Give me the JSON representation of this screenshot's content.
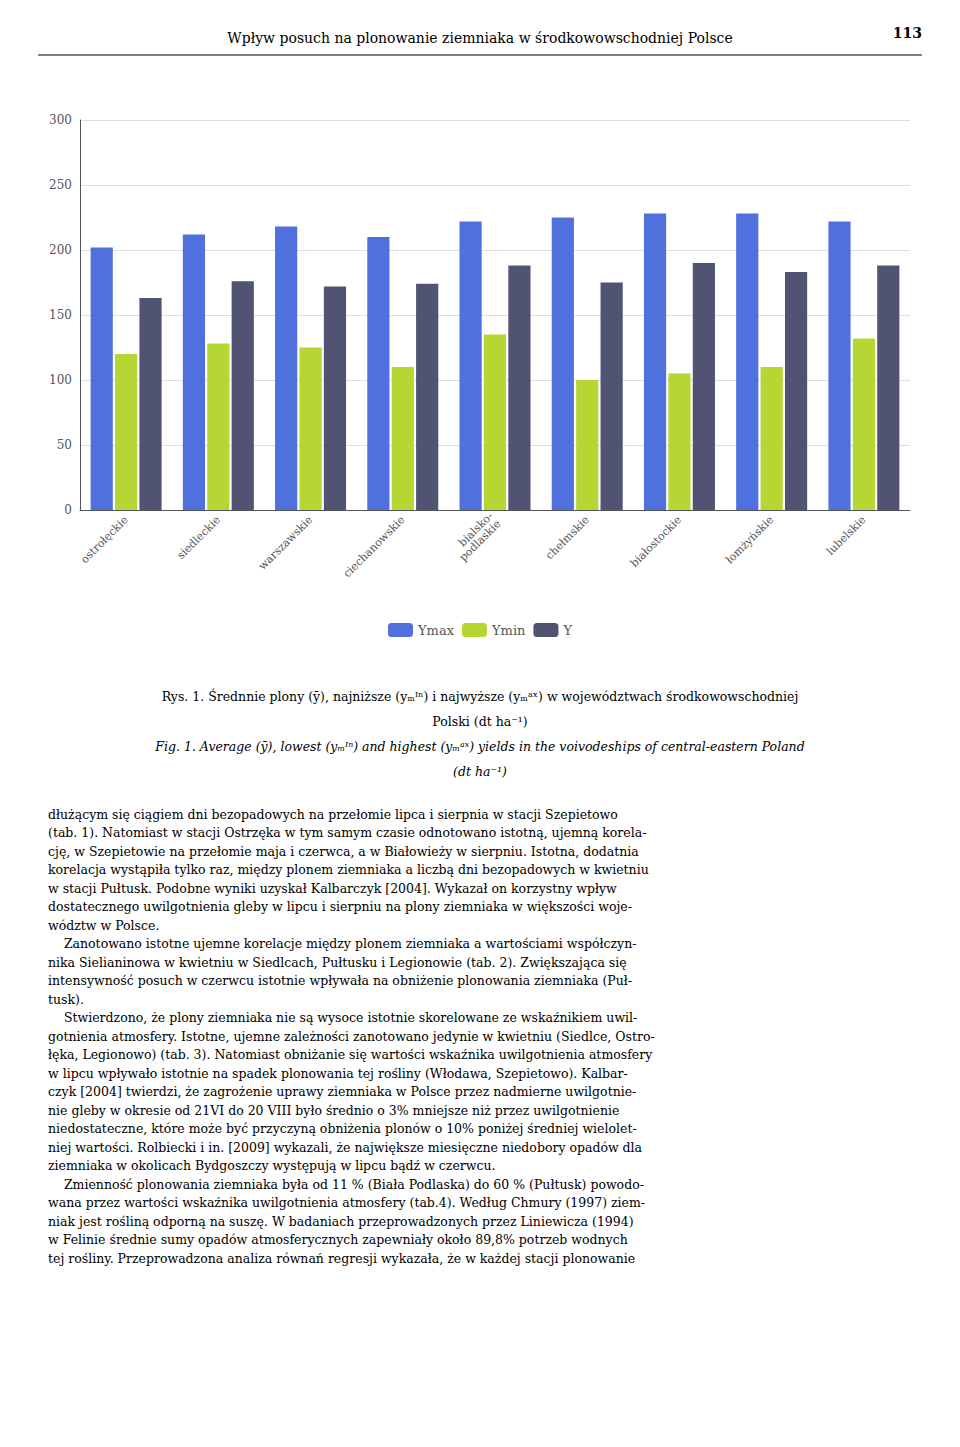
{
  "chart_data": {
    "type": "bar",
    "title": "Wpływ posuch na plonowanie ziemniaka w środkowowschodniej Polsce",
    "annotations": [
      "113",
      "Rys. 1. Średnnie plony (ȳ), najniższe (yₘᴵⁿ) i najwyższe (yₘᵃˣ) w województwach środkowowschodniej",
      "Polski (dt ha⁻¹)",
      "Fig. 1. Average (ȳ), lowest (yₘᴵⁿ) and highest (yₘᵃˣ) yields in the voivodeships of central-eastern Poland",
      "(dt ha⁻¹)",
      "dłużącym się ciągiem dni bezopadowych na przełomie lipca i sierpnia w stacji Szepietowo",
      "(tab. 1). Natomiast w stacji Ostrzęka w tym samym czasie odnotowano istotną, ujemną korela-",
      "cję, w Szepietowie na przełomie maja i czerwca, a w Białowieży w sierpniu. Istotna, dodatnia",
      "korelacja wystąpiła tylko raz, między plonem ziemniaka a liczbą dni bezopadowych w kwietniu",
      "w stacji Pułtusk. Podobne wyniki uzyskał Kalbarczyk [2004]. Wykazał on korzystny wpływ",
      "dostatecznego uwilgotnienia gleby w lipcu i sierpniu na plony ziemniaka w większości woje-",
      "wództw w Polsce.",
      "    Zanotowano istotne ujemne korelacje między plonem ziemniaka a wartościami współczyn-",
      "nika Sielianinowa w kwietniu w Siedlcach, Pułtusku i Legionowie (tab. 2). Zwiększająca się",
      "intensywność posuch w czerwcu istotnie wpływała na obniżenie plonowania ziemniaka (Puł-",
      "tusk).",
      "    Stwierdzono, że plony ziemniaka nie są wysoce istotnie skorelowane ze wskaźnikiem uwil-",
      "gotnienia atmosfery. Istotne, ujemne zależności zanotowano jedynie w kwietniu (Siedlce, Ostro-",
      "łęka, Legionowo) (tab. 3). Natomiast obniżanie się wartości wskaźnika uwilgotnienia atmosfery",
      "w lipcu wpływało istotnie na spadek plonowania tej rośliny (Włodawa, Szepietowo). Kalbar-",
      "czyk [2004] twierdzi, że zagrożenie uprawy ziemniaka w Polsce przez nadmierne uwilgotnie-",
      "nie gleby w okresie od 21VI do 20 VIII było średnio o 3% mniejsze niż przez uwilgotnienie",
      "niedostateczne, które może być przyczyną obniżenia plonów o 10% poniżej średniej wielolet-",
      "niej wartości. Rolbiecki i in. [2009] wykazali, że największe miesięczne niedobory opadów dla",
      "ziemniaka w okolicach Bydgoszczy występują w lipcu bądź w czerwcu.",
      "    Zmienność plonowania ziemniaka była od 11 % (Biała Podlaska) do 60 % (Pułtusk) powodo-",
      "wana przez wartości wskaźnika uwilgotnienia atmosfery (tab.4). Według Chmury (1997) ziem-",
      "niak jest rośliną odporną na suszę. W badaniach przeprowadzonych przez Liniewicza (1994)",
      "w Felinie średnie sumy opadów atmosferycznych zapewniały około 89,8% potrzeb wodnych",
      "tej rośliny. Przeprowadzona analiza równań regresji wykazała, że w każdej stacji plonowanie"
    ],
    "categories": [
      "ostrołęckie",
      "siedleckie",
      "warszawskie",
      "ciechanowskie",
      "bialsko-\npodlaskie",
      "chełmskie",
      "białostockie",
      "łomżyńskie",
      "lubelskie"
    ],
    "series": [
      {
        "name": "Ymax",
        "values": [
          202,
          212,
          218,
          210,
          222,
          225,
          228,
          228,
          222
        ]
      },
      {
        "name": "Ymin",
        "values": [
          120,
          128,
          125,
          110,
          135,
          100,
          105,
          110,
          132
        ]
      },
      {
        "name": "Y",
        "values": [
          163,
          176,
          172,
          174,
          188,
          175,
          190,
          183,
          188
        ]
      }
    ],
    "ylim": [
      0,
      300
    ],
    "yticks": [
      0,
      50,
      100,
      150,
      200,
      250,
      300
    ],
    "grid": true,
    "legend": "bottom"
  }
}
